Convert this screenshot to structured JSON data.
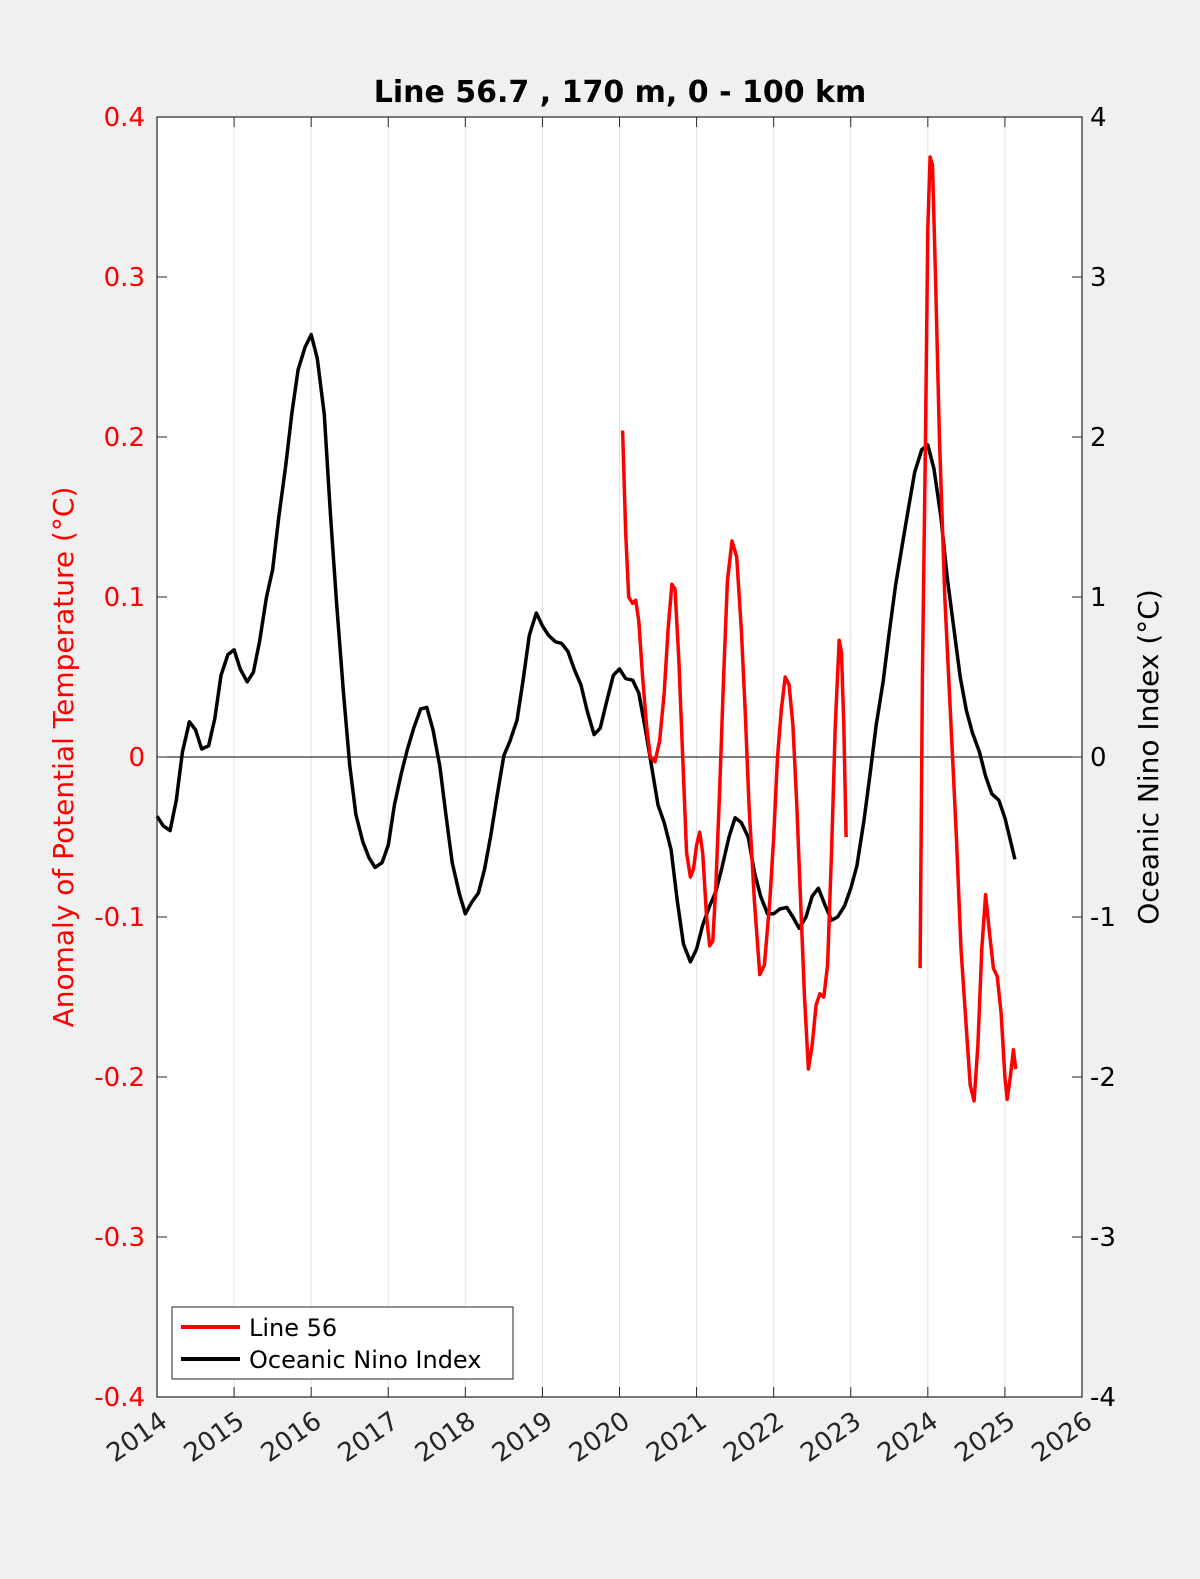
{
  "chart_data": {
    "type": "line",
    "title": "Line 56.7 , 170 m, 0 - 100 km",
    "xlabel": "",
    "ylabel_left": "Anomaly of Potential Temperature (°C)",
    "ylabel_right": "Oceanic Nino Index (°C)",
    "xlim": [
      2014,
      2026
    ],
    "ylim_left": [
      -0.4,
      0.4
    ],
    "ylim_right": [
      -4,
      4
    ],
    "x_ticks": [
      "2014",
      "2015",
      "2016",
      "2017",
      "2018",
      "2019",
      "2020",
      "2021",
      "2022",
      "2023",
      "2024",
      "2025",
      "2026"
    ],
    "y_ticks_left": [
      "0.4",
      "0.3",
      "0.2",
      "0.1",
      "0",
      "-0.1",
      "-0.2",
      "-0.3",
      "-0.4"
    ],
    "y_ticks_right": [
      "4",
      "3",
      "2",
      "1",
      "0",
      "-1",
      "-2",
      "-3",
      "-4"
    ],
    "grid": "vertical",
    "legend_position": "bottom-left",
    "colors": {
      "line56": "#ff0000",
      "oni": "#000000",
      "left_axis": "#ff0000",
      "right_axis": "#000000"
    },
    "series": [
      {
        "name": "Line 56",
        "axis": "left",
        "segments": [
          [
            [
              2020.04,
              0.204
            ],
            [
              2020.08,
              0.14
            ],
            [
              2020.12,
              0.1
            ],
            [
              2020.17,
              0.096
            ],
            [
              2020.21,
              0.098
            ],
            [
              2020.25,
              0.085
            ],
            [
              2020.3,
              0.05
            ],
            [
              2020.35,
              0.02
            ],
            [
              2020.4,
              0.0
            ],
            [
              2020.46,
              -0.003
            ],
            [
              2020.52,
              0.01
            ],
            [
              2020.58,
              0.04
            ],
            [
              2020.63,
              0.08
            ],
            [
              2020.68,
              0.108
            ],
            [
              2020.72,
              0.105
            ],
            [
              2020.77,
              0.06
            ],
            [
              2020.82,
              0.0
            ],
            [
              2020.87,
              -0.06
            ],
            [
              2020.92,
              -0.075
            ],
            [
              2020.96,
              -0.07
            ],
            [
              2021.0,
              -0.055
            ],
            [
              2021.04,
              -0.047
            ],
            [
              2021.08,
              -0.06
            ],
            [
              2021.13,
              -0.1
            ],
            [
              2021.17,
              -0.118
            ],
            [
              2021.21,
              -0.115
            ],
            [
              2021.25,
              -0.08
            ],
            [
              2021.3,
              -0.02
            ],
            [
              2021.35,
              0.05
            ],
            [
              2021.4,
              0.11
            ],
            [
              2021.46,
              0.135
            ],
            [
              2021.52,
              0.125
            ],
            [
              2021.58,
              0.08
            ],
            [
              2021.63,
              0.03
            ],
            [
              2021.68,
              -0.03
            ],
            [
              2021.75,
              -0.09
            ],
            [
              2021.82,
              -0.136
            ],
            [
              2021.88,
              -0.13
            ],
            [
              2021.95,
              -0.09
            ],
            [
              2022.0,
              -0.05
            ],
            [
              2022.05,
              0.0
            ],
            [
              2022.1,
              0.03
            ],
            [
              2022.15,
              0.05
            ],
            [
              2022.2,
              0.045
            ],
            [
              2022.25,
              0.02
            ],
            [
              2022.3,
              -0.03
            ],
            [
              2022.35,
              -0.09
            ],
            [
              2022.4,
              -0.15
            ],
            [
              2022.45,
              -0.195
            ],
            [
              2022.5,
              -0.18
            ],
            [
              2022.55,
              -0.155
            ],
            [
              2022.6,
              -0.148
            ],
            [
              2022.65,
              -0.15
            ],
            [
              2022.7,
              -0.13
            ],
            [
              2022.75,
              -0.06
            ],
            [
              2022.8,
              0.02
            ],
            [
              2022.85,
              0.073
            ],
            [
              2022.88,
              0.065
            ],
            [
              2022.91,
              0.02
            ],
            [
              2022.94,
              -0.05
            ]
          ],
          [
            [
              2023.9,
              -0.132
            ],
            [
              2023.93,
              0.05
            ],
            [
              2023.97,
              0.2
            ],
            [
              2024.0,
              0.33
            ],
            [
              2024.03,
              0.375
            ],
            [
              2024.06,
              0.37
            ],
            [
              2024.1,
              0.3
            ],
            [
              2024.15,
              0.2
            ],
            [
              2024.22,
              0.1
            ],
            [
              2024.3,
              0.02
            ],
            [
              2024.37,
              -0.05
            ],
            [
              2024.43,
              -0.12
            ],
            [
              2024.5,
              -0.17
            ],
            [
              2024.55,
              -0.205
            ],
            [
              2024.6,
              -0.215
            ],
            [
              2024.65,
              -0.18
            ],
            [
              2024.7,
              -0.12
            ],
            [
              2024.75,
              -0.086
            ],
            [
              2024.8,
              -0.11
            ],
            [
              2024.85,
              -0.132
            ],
            [
              2024.9,
              -0.137
            ],
            [
              2024.95,
              -0.16
            ],
            [
              2025.0,
              -0.2
            ],
            [
              2025.03,
              -0.214
            ],
            [
              2025.07,
              -0.2
            ],
            [
              2025.11,
              -0.183
            ],
            [
              2025.14,
              -0.195
            ]
          ]
        ]
      },
      {
        "name": "Oceanic Nino Index",
        "axis": "right",
        "values": [
          [
            2014.0,
            -0.37
          ],
          [
            2014.08,
            -0.43
          ],
          [
            2014.17,
            -0.46
          ],
          [
            2014.25,
            -0.27
          ],
          [
            2014.33,
            0.03
          ],
          [
            2014.42,
            0.22
          ],
          [
            2014.5,
            0.17
          ],
          [
            2014.58,
            0.05
          ],
          [
            2014.67,
            0.07
          ],
          [
            2014.75,
            0.24
          ],
          [
            2014.83,
            0.51
          ],
          [
            2014.92,
            0.64
          ],
          [
            2015.0,
            0.67
          ],
          [
            2015.08,
            0.55
          ],
          [
            2015.17,
            0.47
          ],
          [
            2015.25,
            0.53
          ],
          [
            2015.33,
            0.72
          ],
          [
            2015.42,
            1.0
          ],
          [
            2015.5,
            1.17
          ],
          [
            2015.58,
            1.5
          ],
          [
            2015.67,
            1.82
          ],
          [
            2015.75,
            2.15
          ],
          [
            2015.83,
            2.42
          ],
          [
            2015.92,
            2.56
          ],
          [
            2016.0,
            2.64
          ],
          [
            2016.08,
            2.49
          ],
          [
            2016.17,
            2.14
          ],
          [
            2016.25,
            1.52
          ],
          [
            2016.33,
            0.96
          ],
          [
            2016.42,
            0.4
          ],
          [
            2016.5,
            -0.05
          ],
          [
            2016.58,
            -0.36
          ],
          [
            2016.67,
            -0.53
          ],
          [
            2016.75,
            -0.63
          ],
          [
            2016.83,
            -0.69
          ],
          [
            2016.92,
            -0.66
          ],
          [
            2017.0,
            -0.55
          ],
          [
            2017.08,
            -0.3
          ],
          [
            2017.17,
            -0.1
          ],
          [
            2017.25,
            0.05
          ],
          [
            2017.33,
            0.18
          ],
          [
            2017.42,
            0.3
          ],
          [
            2017.5,
            0.31
          ],
          [
            2017.58,
            0.17
          ],
          [
            2017.67,
            -0.06
          ],
          [
            2017.75,
            -0.37
          ],
          [
            2017.83,
            -0.66
          ],
          [
            2017.92,
            -0.85
          ],
          [
            2018.0,
            -0.98
          ],
          [
            2018.08,
            -0.91
          ],
          [
            2018.17,
            -0.85
          ],
          [
            2018.25,
            -0.7
          ],
          [
            2018.33,
            -0.49
          ],
          [
            2018.42,
            -0.22
          ],
          [
            2018.5,
            0.01
          ],
          [
            2018.58,
            0.1
          ],
          [
            2018.67,
            0.23
          ],
          [
            2018.75,
            0.48
          ],
          [
            2018.83,
            0.76
          ],
          [
            2018.92,
            0.9
          ],
          [
            2019.0,
            0.82
          ],
          [
            2019.08,
            0.76
          ],
          [
            2019.17,
            0.72
          ],
          [
            2019.25,
            0.71
          ],
          [
            2019.33,
            0.66
          ],
          [
            2019.42,
            0.54
          ],
          [
            2019.5,
            0.45
          ],
          [
            2019.58,
            0.29
          ],
          [
            2019.67,
            0.14
          ],
          [
            2019.75,
            0.18
          ],
          [
            2019.83,
            0.34
          ],
          [
            2019.92,
            0.51
          ],
          [
            2020.0,
            0.55
          ],
          [
            2020.08,
            0.49
          ],
          [
            2020.17,
            0.48
          ],
          [
            2020.25,
            0.4
          ],
          [
            2020.33,
            0.19
          ],
          [
            2020.42,
            -0.07
          ],
          [
            2020.5,
            -0.3
          ],
          [
            2020.58,
            -0.41
          ],
          [
            2020.67,
            -0.58
          ],
          [
            2020.75,
            -0.9
          ],
          [
            2020.83,
            -1.17
          ],
          [
            2020.92,
            -1.28
          ],
          [
            2021.0,
            -1.2
          ],
          [
            2021.08,
            -1.05
          ],
          [
            2021.17,
            -0.93
          ],
          [
            2021.25,
            -0.84
          ],
          [
            2021.33,
            -0.69
          ],
          [
            2021.42,
            -0.5
          ],
          [
            2021.5,
            -0.38
          ],
          [
            2021.58,
            -0.41
          ],
          [
            2021.67,
            -0.5
          ],
          [
            2021.75,
            -0.72
          ],
          [
            2021.83,
            -0.87
          ],
          [
            2021.92,
            -0.98
          ],
          [
            2022.0,
            -0.98
          ],
          [
            2022.08,
            -0.95
          ],
          [
            2022.17,
            -0.94
          ],
          [
            2022.25,
            -1.0
          ],
          [
            2022.33,
            -1.07
          ],
          [
            2022.42,
            -1.0
          ],
          [
            2022.5,
            -0.87
          ],
          [
            2022.58,
            -0.82
          ],
          [
            2022.67,
            -0.93
          ],
          [
            2022.75,
            -1.02
          ],
          [
            2022.83,
            -1.0
          ],
          [
            2022.92,
            -0.93
          ],
          [
            2023.0,
            -0.82
          ],
          [
            2023.08,
            -0.68
          ],
          [
            2023.17,
            -0.4
          ],
          [
            2023.25,
            -0.11
          ],
          [
            2023.33,
            0.2
          ],
          [
            2023.42,
            0.47
          ],
          [
            2023.5,
            0.78
          ],
          [
            2023.58,
            1.07
          ],
          [
            2023.67,
            1.33
          ],
          [
            2023.75,
            1.56
          ],
          [
            2023.83,
            1.78
          ],
          [
            2023.92,
            1.92
          ],
          [
            2024.0,
            1.95
          ],
          [
            2024.08,
            1.8
          ],
          [
            2024.17,
            1.5
          ],
          [
            2024.25,
            1.13
          ],
          [
            2024.33,
            0.83
          ],
          [
            2024.42,
            0.5
          ],
          [
            2024.5,
            0.29
          ],
          [
            2024.58,
            0.15
          ],
          [
            2024.67,
            0.03
          ],
          [
            2024.75,
            -0.12
          ],
          [
            2024.83,
            -0.23
          ],
          [
            2024.92,
            -0.27
          ],
          [
            2025.0,
            -0.38
          ],
          [
            2025.08,
            -0.54
          ],
          [
            2025.13,
            -0.64
          ]
        ]
      }
    ]
  }
}
